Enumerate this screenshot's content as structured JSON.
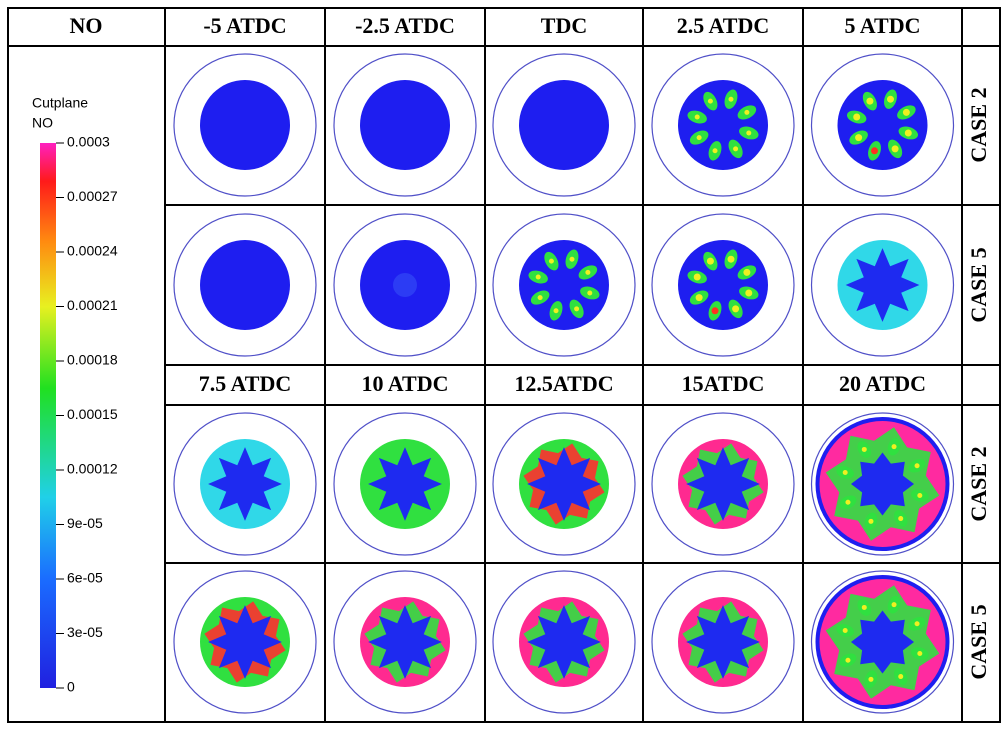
{
  "table": {
    "corner": "NO",
    "header_top": [
      "-5 ATDC",
      "-2.5 ATDC",
      "TDC",
      "2.5 ATDC",
      "5 ATDC"
    ],
    "header_bottom": [
      "7.5 ATDC",
      "10 ATDC",
      "12.5ATDC",
      "15ATDC",
      "20 ATDC"
    ],
    "row_labels": [
      "CASE 2",
      "CASE 5",
      "CASE 2",
      "CASE 5"
    ]
  },
  "colorbar": {
    "title": "Cutplane",
    "variable": "NO",
    "lim": [
      0,
      0.0003
    ],
    "ticks": [
      0.0003,
      0.00027,
      0.00024,
      0.00021,
      0.00018,
      0.00015,
      0.00012,
      {
        "value": 9e-05,
        "label": "9e-05"
      },
      {
        "value": 6e-05,
        "label": "6e-05"
      },
      {
        "value": 3e-05,
        "label": "3e-05"
      },
      0
    ]
  }
}
